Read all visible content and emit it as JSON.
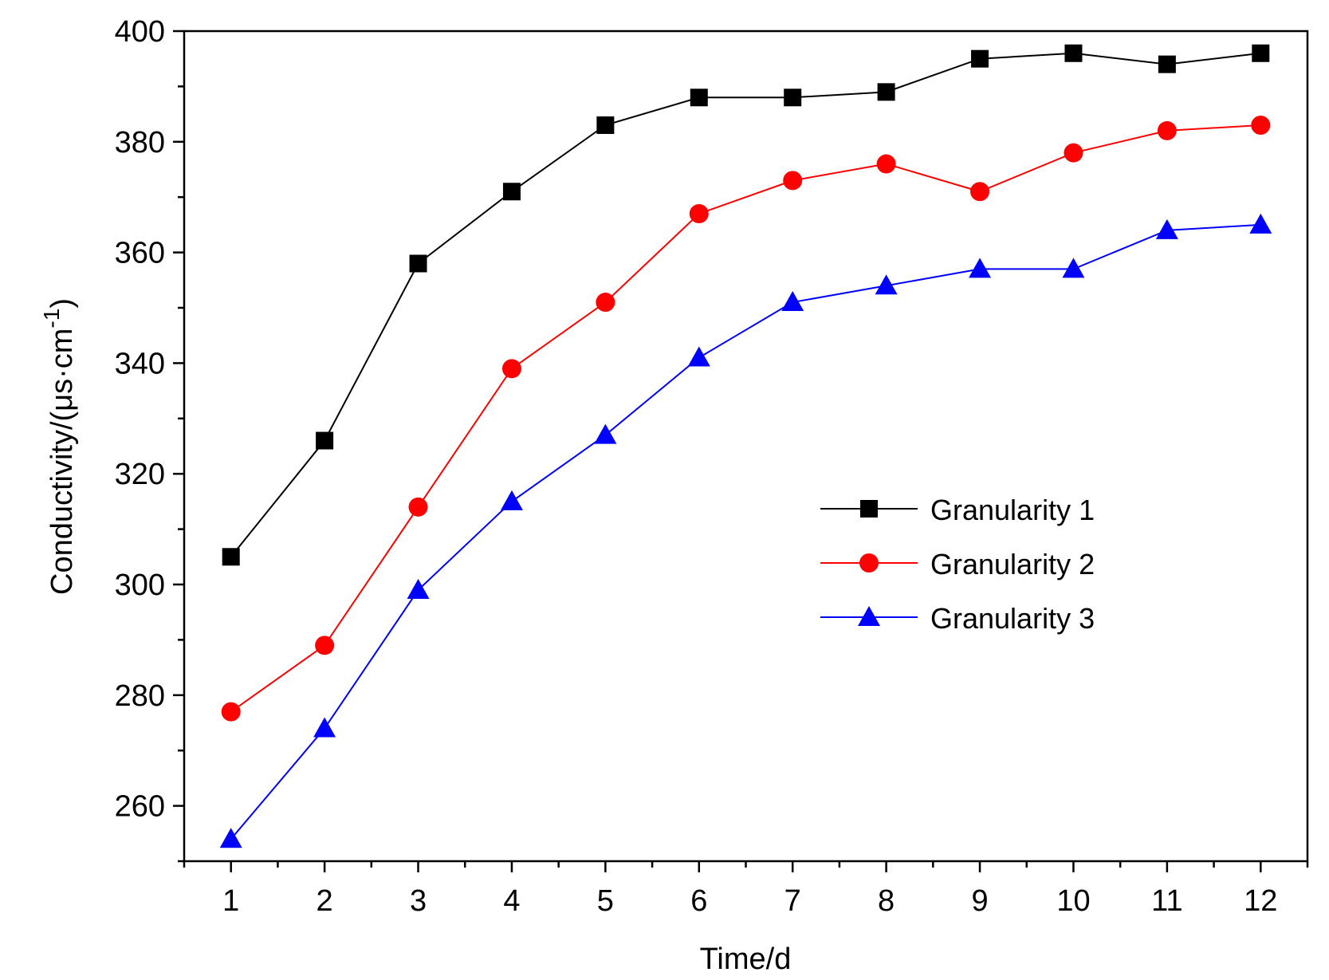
{
  "chart_data": {
    "type": "line",
    "title": "",
    "xlabel": "Time/d",
    "ylabel": "Conductivity/(μs·cm",
    "ylabel_superscript": "-1",
    "ylabel_suffix": ")",
    "x": [
      1,
      2,
      3,
      4,
      5,
      6,
      7,
      8,
      9,
      10,
      11,
      12
    ],
    "xlim": [
      0.5,
      12.5
    ],
    "ylim": [
      250,
      400
    ],
    "yticks": [
      260,
      280,
      300,
      320,
      340,
      360,
      380,
      400
    ],
    "grid": false,
    "legend_position": "middle-right",
    "series": [
      {
        "name": "Granularity 1",
        "color": "#000000",
        "marker": "square",
        "values": [
          305,
          326,
          358,
          371,
          383,
          388,
          388,
          389,
          395,
          396,
          394,
          396
        ]
      },
      {
        "name": "Granularity 2",
        "color": "#ff0000",
        "marker": "circle",
        "values": [
          277,
          289,
          314,
          339,
          351,
          367,
          373,
          376,
          371,
          378,
          382,
          383
        ]
      },
      {
        "name": "Granularity 3",
        "color": "#0000ff",
        "marker": "triangle",
        "values": [
          254,
          274,
          299,
          315,
          327,
          341,
          351,
          354,
          357,
          357,
          364,
          365
        ]
      }
    ]
  }
}
